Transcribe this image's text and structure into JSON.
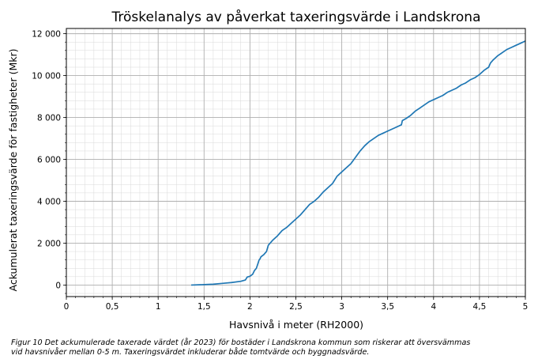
{
  "chart_data": {
    "type": "line",
    "title": "Tröskelanalys av påverkat taxeringsvärde i Landskrona",
    "xlabel": "Havsnivå i meter (RH2000)",
    "ylabel": "Ackumulerat taxeringsvärde för fastigheter (Mkr)",
    "xlim": [
      0,
      5
    ],
    "ylim": [
      -550,
      12250
    ],
    "x_ticks": [
      0,
      0.5,
      1,
      1.5,
      2,
      2.5,
      3,
      3.5,
      4,
      4.5,
      5
    ],
    "x_tick_labels": [
      "0",
      "0,5",
      "1",
      "1,5",
      "2",
      "2,5",
      "3",
      "3,5",
      "4",
      "4,5",
      "5"
    ],
    "y_ticks": [
      0,
      2000,
      4000,
      6000,
      8000,
      10000,
      12000
    ],
    "y_tick_labels": [
      "0",
      "2 000",
      "4 000",
      "6 000",
      "8 000",
      "10 000",
      "12 000"
    ],
    "grid": "major and minor",
    "series": [
      {
        "color": "#1f77b4",
        "x": [
          1.36,
          1.5,
          1.6,
          1.7,
          1.8,
          1.9,
          1.95,
          1.97,
          2.0,
          2.03,
          2.05,
          2.07,
          2.1,
          2.11,
          2.12,
          2.15,
          2.18,
          2.2,
          2.22,
          2.25,
          2.3,
          2.35,
          2.4,
          2.45,
          2.5,
          2.55,
          2.6,
          2.65,
          2.7,
          2.75,
          2.8,
          2.85,
          2.9,
          2.95,
          3.0,
          3.05,
          3.1,
          3.15,
          3.2,
          3.25,
          3.3,
          3.35,
          3.4,
          3.45,
          3.5,
          3.55,
          3.6,
          3.65,
          3.66,
          3.7,
          3.75,
          3.8,
          3.85,
          3.9,
          3.95,
          4.0,
          4.05,
          4.1,
          4.15,
          4.2,
          4.25,
          4.3,
          4.35,
          4.4,
          4.45,
          4.5,
          4.55,
          4.6,
          4.62,
          4.65,
          4.7,
          4.75,
          4.8,
          4.85,
          4.9,
          4.95,
          5.0
        ],
        "y": [
          0,
          20,
          40,
          80,
          120,
          180,
          240,
          380,
          420,
          520,
          700,
          800,
          1200,
          1250,
          1350,
          1450,
          1600,
          1900,
          2000,
          2150,
          2350,
          2600,
          2750,
          2950,
          3150,
          3350,
          3600,
          3850,
          4000,
          4200,
          4450,
          4650,
          4850,
          5200,
          5400,
          5600,
          5800,
          6100,
          6400,
          6650,
          6850,
          7000,
          7150,
          7250,
          7350,
          7450,
          7550,
          7650,
          7850,
          7950,
          8100,
          8300,
          8450,
          8600,
          8750,
          8850,
          8950,
          9050,
          9200,
          9300,
          9400,
          9550,
          9650,
          9800,
          9900,
          10050,
          10250,
          10400,
          10600,
          10750,
          10950,
          11100,
          11250,
          11350,
          11450,
          11550,
          11650
        ]
      }
    ]
  },
  "caption": {
    "line1": "Figur 10 Det ackumulerade taxerade värdet (år 2023) för bostäder i Landskrona kommun som riskerar att översvämmas",
    "line2": "vid havsnivåer mellan 0-5 m. Taxeringsvärdet inkluderar både tomtvärde och byggnadsvärde."
  }
}
